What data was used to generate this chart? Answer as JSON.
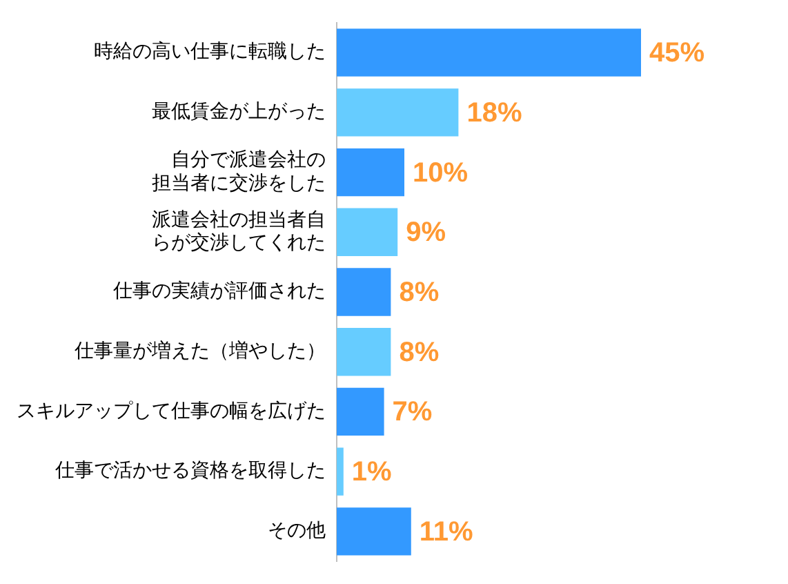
{
  "chart_data": {
    "type": "bar",
    "orientation": "horizontal",
    "categories": [
      "時給の高い仕事に転職した",
      "最低賃金が上がった",
      "自分で派遣会社の担当者に交渉をした",
      "派遣会社の担当者自らが交渉してくれた",
      "仕事の実績が評価された",
      "仕事量が増えた（増やした）",
      "スキルアップして仕事の幅を広げた",
      "仕事で活かせる資格を取得した",
      "その他"
    ],
    "values": [
      45,
      18,
      10,
      9,
      8,
      8,
      7,
      1,
      11
    ],
    "colors": [
      "#3399ff",
      "#66ccff",
      "#3399ff",
      "#66ccff",
      "#3399ff",
      "#66ccff",
      "#3399ff",
      "#66ccff",
      "#3399ff"
    ],
    "value_labels": [
      "45%",
      "18%",
      "10%",
      "9%",
      "8%",
      "8%",
      "7%",
      "1%",
      "11%"
    ],
    "tick_labels": "y",
    "grid": false,
    "legend": false
  }
}
